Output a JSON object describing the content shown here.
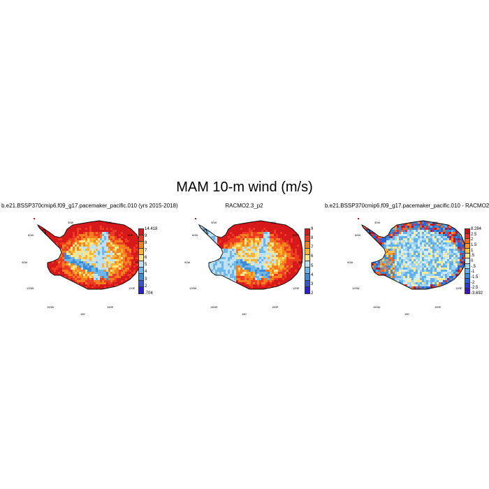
{
  "figure": {
    "title": "MAM 10-m wind (m/s)"
  },
  "panels": [
    {
      "title": "b.e21.BSSP370cmip6.f09_g17.pacemaker_pacific.010 (yrs 2015-2018)",
      "lon_labels": [
        "30W",
        "30E",
        "60W",
        "60E",
        "90W",
        "90E",
        "120W",
        "120E",
        "150W",
        "150E",
        "180"
      ],
      "colorbar": {
        "labels": [
          "14.418",
          "9",
          "8",
          "7",
          "6",
          "5",
          "4",
          "3",
          "2",
          ".704"
        ],
        "colors": [
          "#d7191c",
          "#ef3b22",
          "#f77f1e",
          "#fdb32f",
          "#fde68a",
          "#bfe1f5",
          "#6db6ea",
          "#3b8bd9",
          "#3855d0",
          "#2b1fd6"
        ]
      }
    },
    {
      "title": "RACMO2.3_p2",
      "lon_labels": [
        "30W",
        "30E",
        "60W",
        "60E",
        "90W",
        "90E",
        "120W",
        "120E",
        "150W",
        "150E",
        "180"
      ],
      "colorbar": {
        "labels": [
          "9",
          "8",
          "7",
          "6",
          "5",
          "4",
          "3",
          "2"
        ],
        "colors": [
          "#d7191c",
          "#ef3b22",
          "#f77f1e",
          "#fdb32f",
          "#fde68a",
          "#bfe1f5",
          "#6db6ea",
          "#3b8bd9",
          "#3855d0",
          "#2b1fd6"
        ]
      }
    },
    {
      "title": "b.e21.BSSP370cmip6.f09_g17.pacemaker_pacific.010 - RACMO2.3_p2",
      "lon_labels": [
        "30W",
        "30E",
        "60W",
        "60E",
        "90W",
        "90E",
        "120W",
        "120E",
        "150W",
        "150E",
        "180"
      ],
      "colorbar": {
        "labels": [
          "8.284",
          "2.5",
          "2",
          "1.5",
          "1",
          ".5",
          "0",
          "-.5",
          "-1",
          "-1.5",
          "-2",
          "-2.5",
          "-3.692"
        ],
        "colors": [
          "#c1121f",
          "#e8302a",
          "#f56a1f",
          "#fb9a29",
          "#fdc64b",
          "#fdeb8e",
          "#d6ecf7",
          "#9fd3f3",
          "#5fb0ec",
          "#3b8bd9",
          "#2f63d3",
          "#2b3ad0",
          "#3a17b8"
        ]
      }
    }
  ]
}
